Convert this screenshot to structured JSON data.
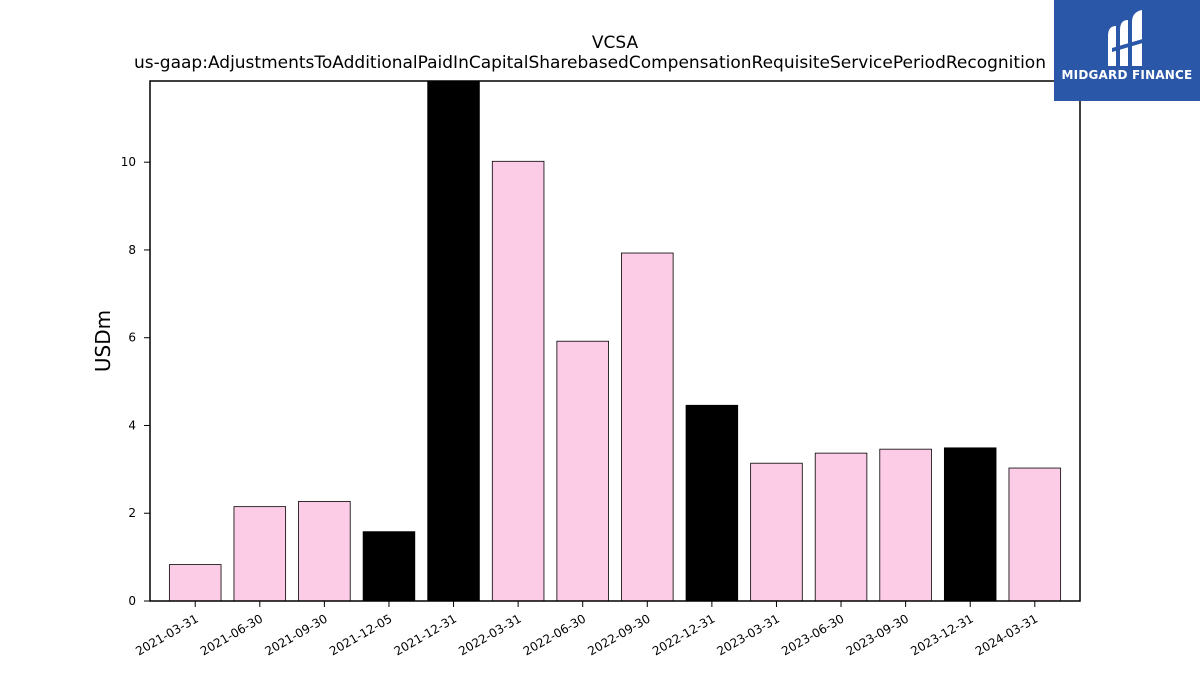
{
  "chart_data": {
    "type": "bar",
    "title_lines": [
      "VCSA",
      "us-gaap:AdjustmentsToAdditionalPaidInCapitalSharebasedCompensationRequisiteServicePeriodRecognition"
    ],
    "ylabel": "USDm",
    "xlabel": "",
    "ylim": [
      0,
      11.85
    ],
    "yticks": [
      0,
      2,
      4,
      6,
      8,
      10
    ],
    "categories": [
      "2021-03-31",
      "2021-06-30",
      "2021-09-30",
      "2021-12-05",
      "2021-12-31",
      "2022-03-31",
      "2022-06-30",
      "2022-09-30",
      "2022-12-31",
      "2023-03-31",
      "2023-06-30",
      "2023-09-30",
      "2023-12-31",
      "2024-03-31"
    ],
    "values": [
      0.83,
      2.15,
      2.27,
      1.58,
      11.85,
      10.02,
      5.92,
      7.93,
      4.46,
      3.14,
      3.37,
      3.46,
      3.49,
      3.03
    ],
    "bar_colors": [
      "#fccbe5",
      "#fccbe5",
      "#fccbe5",
      "#000000",
      "#000000",
      "#fccbe5",
      "#fccbe5",
      "#fccbe5",
      "#000000",
      "#fccbe5",
      "#fccbe5",
      "#fccbe5",
      "#000000",
      "#fccbe5"
    ],
    "grid": false,
    "legend": "none"
  },
  "logo": {
    "text": "MIDGARD FINANCE",
    "background": "#2b57a8"
  }
}
